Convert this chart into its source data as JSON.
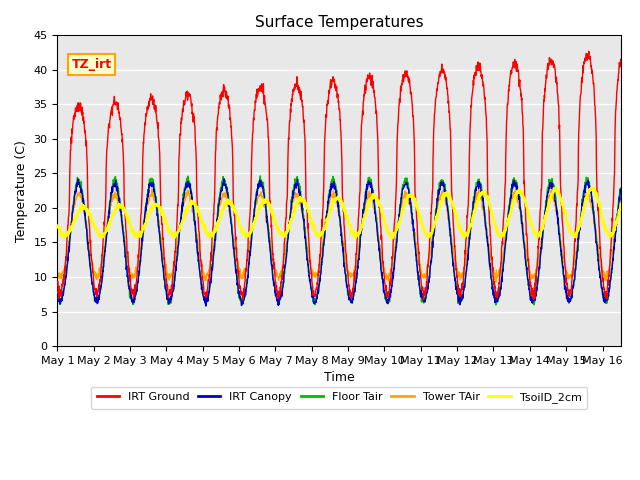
{
  "title": "Surface Temperatures",
  "xlabel": "Time",
  "ylabel": "Temperature (C)",
  "ylim": [
    0,
    45
  ],
  "xlim_days": 15.5,
  "xtick_labels": [
    "May 1",
    "May 2",
    "May 3",
    "May 4",
    "May 5",
    "May 6",
    "May 7",
    "May 8",
    "May 9",
    "May 10",
    "May 11",
    "May 12",
    "May 13",
    "May 14",
    "May 15",
    "May 16"
  ],
  "xtick_positions": [
    0,
    1,
    2,
    3,
    4,
    5,
    6,
    7,
    8,
    9,
    10,
    11,
    12,
    13,
    14,
    15
  ],
  "annotation_text": "TZ_irt",
  "legend_labels": [
    "IRT Ground",
    "IRT Canopy",
    "Floor Tair",
    "Tower TAir",
    "TsoilD_2cm"
  ],
  "line_colors": [
    "red",
    "#0000cc",
    "#00bb00",
    "orange",
    "yellow"
  ],
  "bg_color": "#e8e8e8",
  "n_points": 2000
}
